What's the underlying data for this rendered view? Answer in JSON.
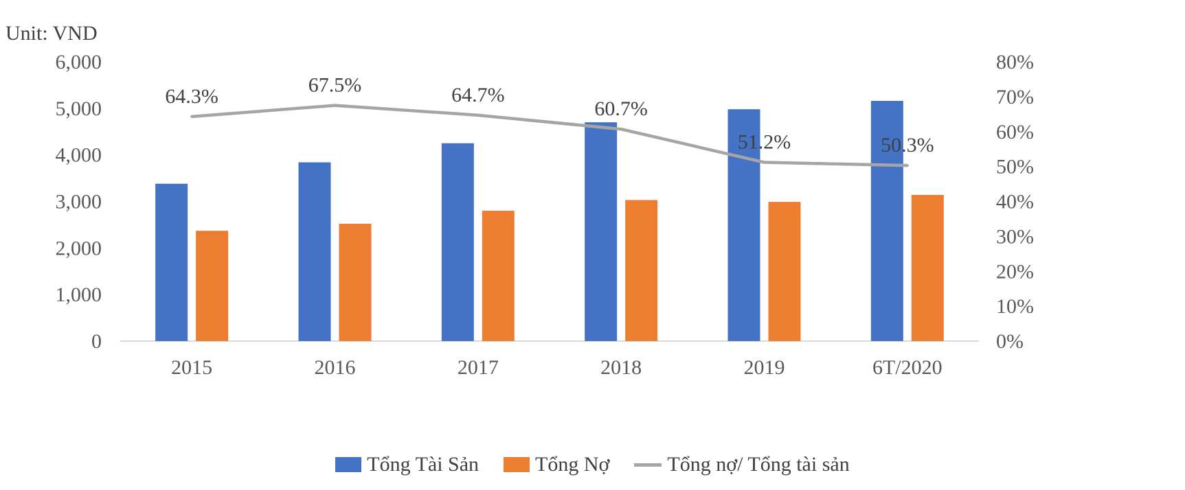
{
  "unit_label": "Unit: VND",
  "chart_data": {
    "type": "bar+line",
    "categories": [
      "2015",
      "2016",
      "2017",
      "2018",
      "2019",
      "6T/2020"
    ],
    "series": [
      {
        "name": "Tổng Tài Sản",
        "type": "bar",
        "axis": "left",
        "color": "#4472C4",
        "values": [
          3380,
          3840,
          4250,
          4700,
          4980,
          5160
        ]
      },
      {
        "name": "Tổng Nợ",
        "type": "bar",
        "axis": "left",
        "color": "#ED7D31",
        "values": [
          2370,
          2520,
          2800,
          3030,
          2990,
          3140
        ]
      },
      {
        "name": "Tổng nợ/ Tổng tài sản",
        "type": "line",
        "axis": "right",
        "color": "#A5A5A5",
        "values": [
          64.3,
          67.5,
          64.7,
          60.7,
          51.2,
          50.3
        ],
        "labels": [
          "64.3%",
          "67.5%",
          "64.7%",
          "60.7%",
          "51.2%",
          "50.3%"
        ]
      }
    ],
    "y_left": {
      "min": 0,
      "max": 6000,
      "ticks": [
        "0",
        "1,000",
        "2,000",
        "3,000",
        "4,000",
        "5,000",
        "6,000"
      ]
    },
    "y_right": {
      "min": 0,
      "max": 80,
      "ticks": [
        "0%",
        "10%",
        "20%",
        "30%",
        "40%",
        "50%",
        "60%",
        "70%",
        "80%"
      ]
    },
    "legend_position": "bottom",
    "grid": false
  }
}
